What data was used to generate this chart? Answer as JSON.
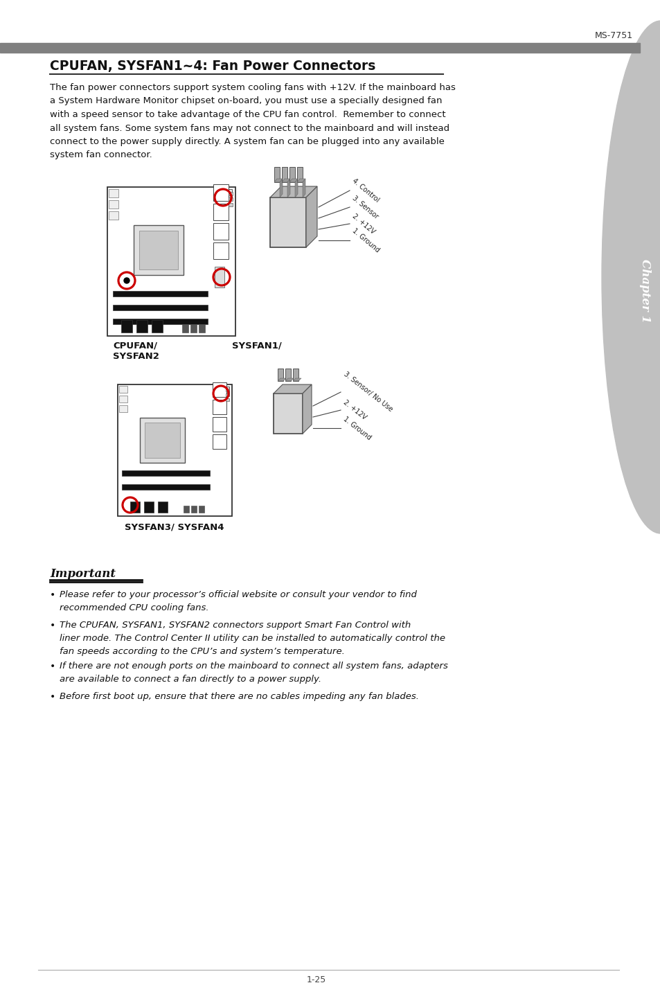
{
  "page_header": "MS-7751",
  "footer_number": "1-25",
  "title": "CPUFAN, SYSFAN1~4: Fan Power Connectors",
  "body_text": "The fan power connectors support system cooling fans with +12V. If the mainboard has\na System Hardware Monitor chipset on-board, you must use a specially designed fan\nwith a speed sensor to take advantage of the CPU fan control.  Remember to connect\nall system fans. Some system fans may not connect to the mainboard and will instead\nconnect to the power supply directly. A system fan can be plugged into any available\nsystem fan connector.",
  "diagram1_label_left": "CPUFAN/",
  "diagram1_label_left2": "SYSFAN2",
  "diagram1_label_right": "SYSFAN1/",
  "diagram1_pins": [
    "1. Ground",
    "2. +12V",
    "3. Sensor",
    "4. Control"
  ],
  "diagram2_label": "SYSFAN3/ SYSFAN4",
  "diagram2_pins": [
    "1. Ground",
    "2. +12V",
    "3. Sensor/ No Use"
  ],
  "important_title": "Important",
  "bullets": [
    "Please refer to your processor’s official website or consult your vendor to find\nrecommended CPU cooling fans.",
    "The CPUFAN, SYSFAN1, SYSFAN2 connectors support Smart Fan Control with\nliner mode. The Control Center II utility can be installed to automatically control the\nfan speeds according to the CPU’s and system’s temperature.",
    "If there are not enough ports on the mainboard to connect all system fans, adapters\nare available to connect a fan directly to a power supply.",
    "Before first boot up, ensure that there are no cables impeding any fan blades."
  ],
  "chapter_text": "Chapter 1",
  "bg_color": "#ffffff",
  "header_bar_color": "#808080",
  "sidebar_color": "#c0c0c0",
  "text_color": "#111111",
  "red_color": "#cc0000"
}
